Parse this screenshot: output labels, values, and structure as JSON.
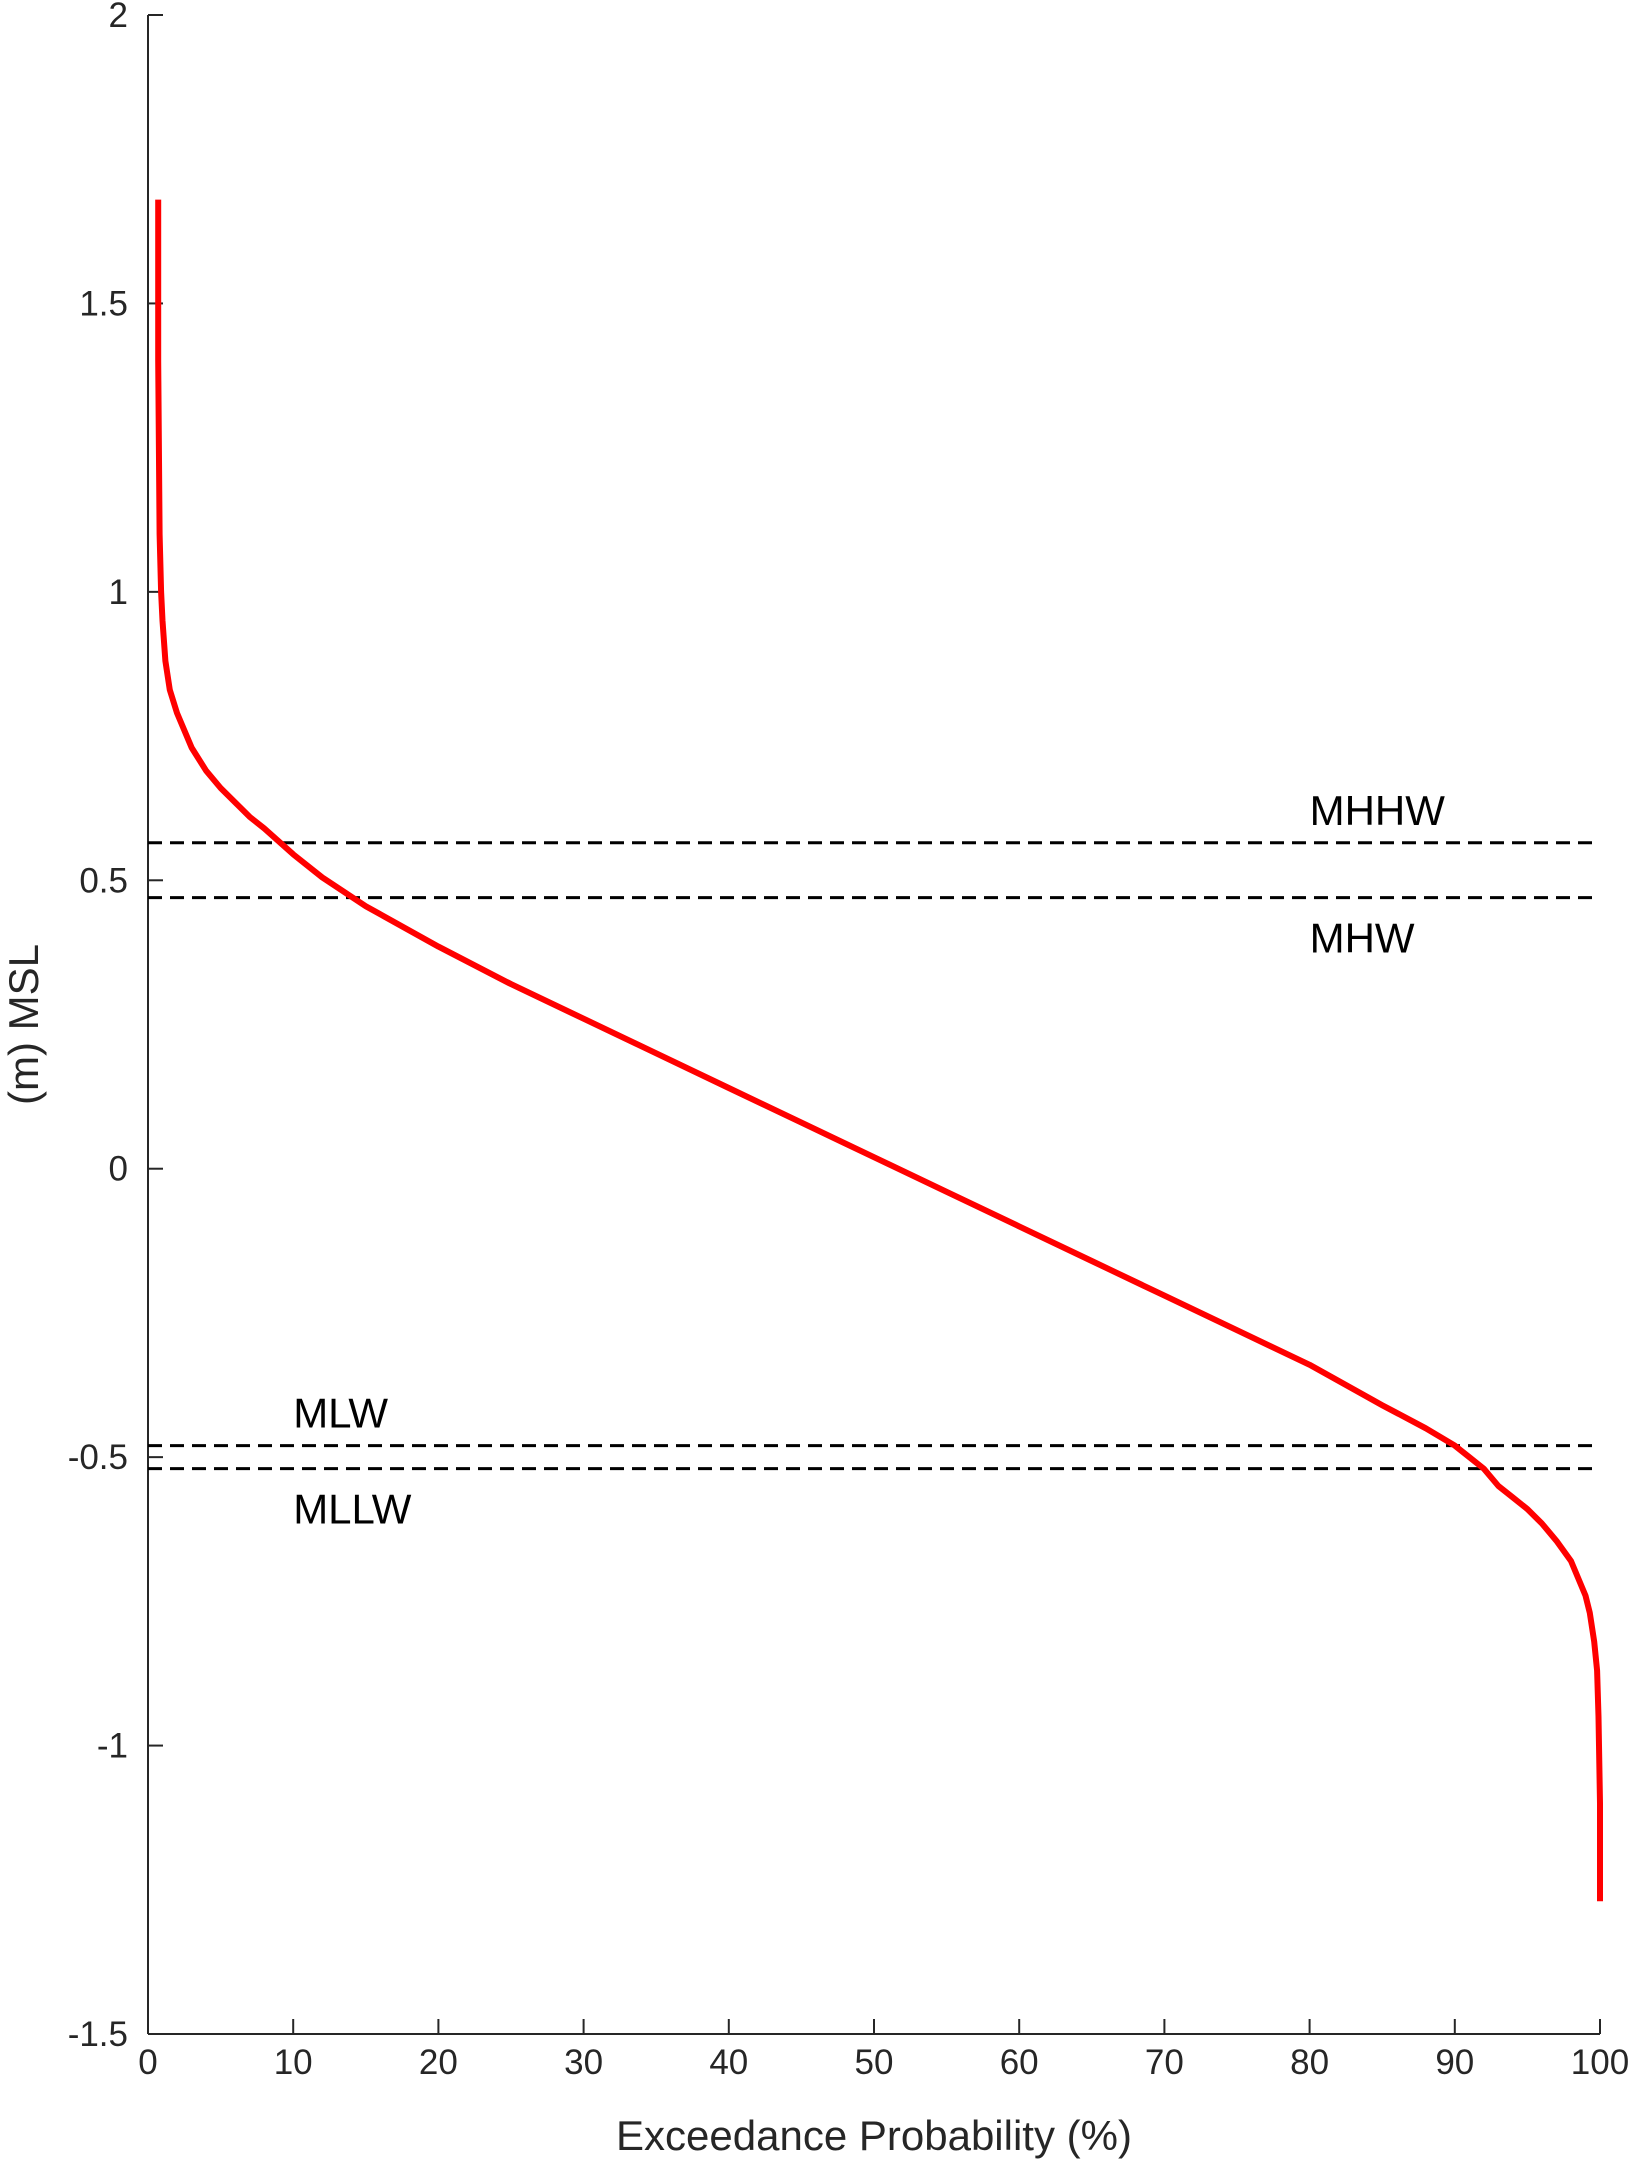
{
  "chart_data": {
    "type": "line",
    "title": "",
    "xlabel": "Exceedance Probability (%)",
    "ylabel": "(m) MSL",
    "xlim": [
      0,
      100
    ],
    "ylim": [
      -1.5,
      2
    ],
    "xticks": [
      0,
      10,
      20,
      30,
      40,
      50,
      60,
      70,
      80,
      90,
      100
    ],
    "yticks": [
      -1.5,
      -1,
      -0.5,
      0,
      0.5,
      1,
      1.5,
      2
    ],
    "xtick_labels": [
      "0",
      "10",
      "20",
      "30",
      "40",
      "50",
      "60",
      "70",
      "80",
      "90",
      "100"
    ],
    "ytick_labels": [
      "-1.5",
      "-1",
      "-0.5",
      "0",
      "0.5",
      "1",
      "1.5",
      "2"
    ],
    "grid": false,
    "series": [
      {
        "color": "#ff0000",
        "x": [
          0.7,
          0.7,
          0.75,
          0.8,
          0.9,
          1.0,
          1.2,
          1.5,
          2,
          3,
          4,
          5,
          6,
          7,
          8,
          10,
          12,
          15,
          20,
          25,
          30,
          35,
          40,
          45,
          50,
          55,
          60,
          65,
          70,
          75,
          80,
          85,
          88,
          90,
          91,
          92,
          93,
          94,
          95,
          96,
          97,
          98,
          99,
          99.3,
          99.6,
          99.8,
          99.9,
          100,
          100
        ],
        "y": [
          1.68,
          1.4,
          1.25,
          1.1,
          1.0,
          0.95,
          0.88,
          0.83,
          0.79,
          0.73,
          0.69,
          0.66,
          0.635,
          0.61,
          0.59,
          0.545,
          0.505,
          0.455,
          0.385,
          0.32,
          0.26,
          0.2,
          0.14,
          0.08,
          0.02,
          -0.04,
          -0.1,
          -0.16,
          -0.22,
          -0.28,
          -0.34,
          -0.41,
          -0.45,
          -0.48,
          -0.5,
          -0.52,
          -0.55,
          -0.57,
          -0.59,
          -0.615,
          -0.645,
          -0.68,
          -0.74,
          -0.77,
          -0.82,
          -0.87,
          -0.95,
          -1.1,
          -1.27
        ]
      }
    ],
    "reference_lines": [
      {
        "label": "MHHW",
        "y": 0.565,
        "color": "#000000",
        "style": "dashed",
        "label_position": "above",
        "label_x": 80
      },
      {
        "label": "MHW",
        "y": 0.47,
        "color": "#000000",
        "style": "dashed",
        "label_position": "below",
        "label_x": 80
      },
      {
        "label": "MLW",
        "y": -0.48,
        "color": "#000000",
        "style": "dashed",
        "label_position": "above",
        "label_x": 10
      },
      {
        "label": "MLLW",
        "y": -0.52,
        "color": "#000000",
        "style": "dashed",
        "label_position": "below",
        "label_x": 10
      }
    ]
  }
}
